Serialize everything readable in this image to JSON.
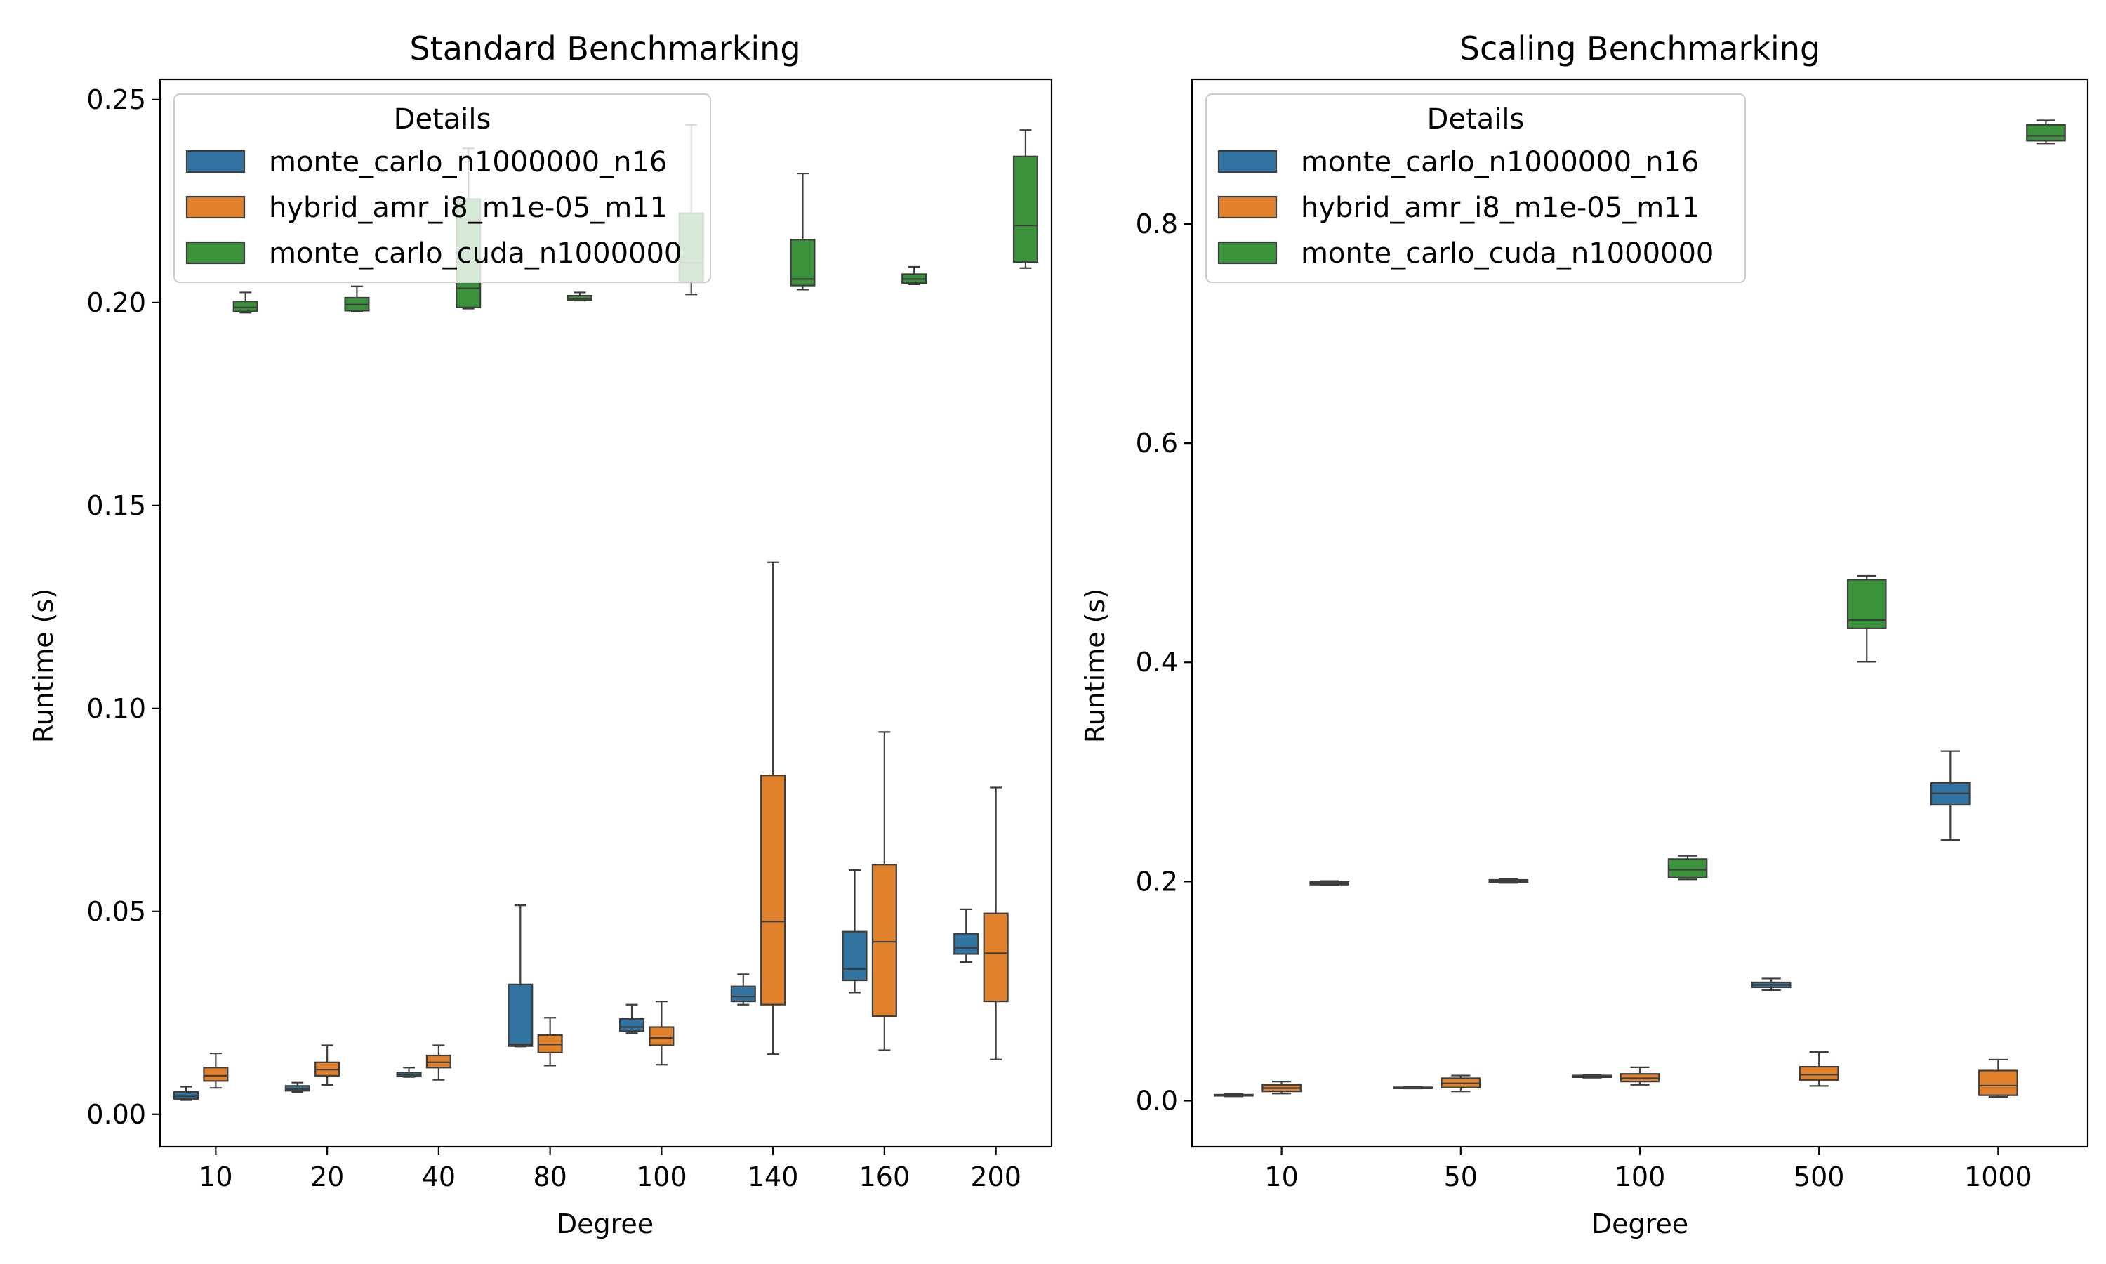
{
  "chart_data": [
    {
      "type": "box",
      "title": "Standard Benchmarking",
      "xlabel": "Degree",
      "ylabel": "Runtime (s)",
      "ylim": [
        -0.008,
        0.255
      ],
      "yticks": [
        "0.00",
        "0.05",
        "0.10",
        "0.15",
        "0.20",
        "0.25"
      ],
      "categories": [
        "10",
        "20",
        "40",
        "80",
        "100",
        "140",
        "160",
        "200"
      ],
      "legend": {
        "title": "Details",
        "position": "upper-left",
        "entries": [
          "monte_carlo_n1000000_n16",
          "hybrid_amr_i8_m1e-05_m11",
          "monte_carlo_cuda_n1000000"
        ]
      },
      "series": [
        {
          "name": "monte_carlo_n1000000_n16",
          "color": "#3274a1",
          "boxes": [
            {
              "whislo": 0.0035,
              "q1": 0.0038,
              "med": 0.0044,
              "q3": 0.0055,
              "whishi": 0.0068
            },
            {
              "whislo": 0.0055,
              "q1": 0.0058,
              "med": 0.0062,
              "q3": 0.007,
              "whishi": 0.0078
            },
            {
              "whislo": 0.0092,
              "q1": 0.0093,
              "med": 0.0097,
              "q3": 0.0103,
              "whishi": 0.0115
            },
            {
              "whislo": 0.0167,
              "q1": 0.0168,
              "med": 0.0172,
              "q3": 0.032,
              "whishi": 0.0515
            },
            {
              "whislo": 0.02,
              "q1": 0.0205,
              "med": 0.0215,
              "q3": 0.0235,
              "whishi": 0.027
            },
            {
              "whislo": 0.027,
              "q1": 0.0278,
              "med": 0.029,
              "q3": 0.0315,
              "whishi": 0.0345
            },
            {
              "whislo": 0.03,
              "q1": 0.033,
              "med": 0.0358,
              "q3": 0.045,
              "whishi": 0.0602
            },
            {
              "whislo": 0.0375,
              "q1": 0.0395,
              "med": 0.041,
              "q3": 0.0445,
              "whishi": 0.0505
            }
          ]
        },
        {
          "name": "hybrid_amr_i8_m1e-05_m11",
          "color": "#e1812c",
          "boxes": [
            {
              "whislo": 0.0065,
              "q1": 0.0082,
              "med": 0.0095,
              "q3": 0.0115,
              "whishi": 0.015
            },
            {
              "whislo": 0.0072,
              "q1": 0.0095,
              "med": 0.011,
              "q3": 0.0128,
              "whishi": 0.017
            },
            {
              "whislo": 0.0085,
              "q1": 0.0115,
              "med": 0.0128,
              "q3": 0.0145,
              "whishi": 0.017
            },
            {
              "whislo": 0.012,
              "q1": 0.0152,
              "med": 0.0172,
              "q3": 0.0195,
              "whishi": 0.0238
            },
            {
              "whislo": 0.0122,
              "q1": 0.017,
              "med": 0.0188,
              "q3": 0.0215,
              "whishi": 0.0278
            },
            {
              "whislo": 0.0148,
              "q1": 0.027,
              "med": 0.0475,
              "q3": 0.0835,
              "whishi": 0.136
            },
            {
              "whislo": 0.0158,
              "q1": 0.0242,
              "med": 0.0425,
              "q3": 0.0615,
              "whishi": 0.0942
            },
            {
              "whislo": 0.0135,
              "q1": 0.0278,
              "med": 0.0397,
              "q3": 0.0495,
              "whishi": 0.0805
            }
          ]
        },
        {
          "name": "monte_carlo_cuda_n1000000",
          "color": "#3a923a",
          "boxes": [
            {
              "whislo": 0.1975,
              "q1": 0.1978,
              "med": 0.1988,
              "q3": 0.2003,
              "whishi": 0.2025
            },
            {
              "whislo": 0.1978,
              "q1": 0.198,
              "med": 0.1995,
              "q3": 0.2012,
              "whishi": 0.204
            },
            {
              "whislo": 0.1985,
              "q1": 0.1988,
              "med": 0.2035,
              "q3": 0.2255,
              "whishi": 0.238
            },
            {
              "whislo": 0.2005,
              "q1": 0.2006,
              "med": 0.201,
              "q3": 0.2017,
              "whishi": 0.2025
            },
            {
              "whislo": 0.202,
              "q1": 0.205,
              "med": 0.2098,
              "q3": 0.222,
              "whishi": 0.2438
            },
            {
              "whislo": 0.2032,
              "q1": 0.2042,
              "med": 0.2058,
              "q3": 0.2155,
              "whishi": 0.2318
            },
            {
              "whislo": 0.2045,
              "q1": 0.2048,
              "med": 0.2058,
              "q3": 0.207,
              "whishi": 0.2088
            },
            {
              "whislo": 0.2085,
              "q1": 0.21,
              "med": 0.219,
              "q3": 0.236,
              "whishi": 0.2425
            }
          ]
        }
      ]
    },
    {
      "type": "box",
      "title": "Scaling Benchmarking",
      "xlabel": "Degree",
      "ylabel": "Runtime (s)",
      "ylim": [
        -0.042,
        0.932
      ],
      "yticks": [
        "0.0",
        "0.2",
        "0.4",
        "0.6",
        "0.8"
      ],
      "categories": [
        "10",
        "50",
        "100",
        "500",
        "1000"
      ],
      "legend": {
        "title": "Details",
        "position": "upper-left",
        "entries": [
          "monte_carlo_n1000000_n16",
          "hybrid_amr_i8_m1e-05_m11",
          "monte_carlo_cuda_n1000000"
        ]
      },
      "series": [
        {
          "name": "monte_carlo_n1000000_n16",
          "color": "#3274a1",
          "boxes": [
            {
              "whislo": 0.004,
              "q1": 0.0045,
              "med": 0.005,
              "q3": 0.0055,
              "whishi": 0.006
            },
            {
              "whislo": 0.0112,
              "q1": 0.0115,
              "med": 0.0118,
              "q3": 0.0122,
              "whishi": 0.0125
            },
            {
              "whislo": 0.021,
              "q1": 0.0215,
              "med": 0.0222,
              "q3": 0.023,
              "whishi": 0.0235
            },
            {
              "whislo": 0.101,
              "q1": 0.1035,
              "med": 0.1058,
              "q3": 0.108,
              "whishi": 0.1115
            },
            {
              "whislo": 0.238,
              "q1": 0.27,
              "med": 0.2805,
              "q3": 0.29,
              "whishi": 0.319
            }
          ]
        },
        {
          "name": "hybrid_amr_i8_m1e-05_m11",
          "color": "#e1812c",
          "boxes": [
            {
              "whislo": 0.0065,
              "q1": 0.0085,
              "med": 0.0115,
              "q3": 0.0145,
              "whishi": 0.0175
            },
            {
              "whislo": 0.0085,
              "q1": 0.012,
              "med": 0.0158,
              "q3": 0.0205,
              "whishi": 0.023
            },
            {
              "whislo": 0.0145,
              "q1": 0.0175,
              "med": 0.0205,
              "q3": 0.0245,
              "whishi": 0.0305
            },
            {
              "whislo": 0.0135,
              "q1": 0.019,
              "med": 0.0238,
              "q3": 0.031,
              "whishi": 0.0445
            },
            {
              "whislo": 0.0035,
              "q1": 0.005,
              "med": 0.0138,
              "q3": 0.0275,
              "whishi": 0.0375
            }
          ]
        },
        {
          "name": "monte_carlo_cuda_n1000000",
          "color": "#3a923a",
          "boxes": [
            {
              "whislo": 0.1965,
              "q1": 0.1972,
              "med": 0.1982,
              "q3": 0.1995,
              "whishi": 0.2005
            },
            {
              "whislo": 0.1988,
              "q1": 0.1995,
              "med": 0.2005,
              "q3": 0.2015,
              "whishi": 0.2025
            },
            {
              "whislo": 0.202,
              "q1": 0.2035,
              "med": 0.2108,
              "q3": 0.2205,
              "whishi": 0.2235
            },
            {
              "whislo": 0.4005,
              "q1": 0.431,
              "med": 0.4385,
              "q3": 0.4755,
              "whishi": 0.479
            },
            {
              "whislo": 0.8735,
              "q1": 0.876,
              "med": 0.8805,
              "q3": 0.8905,
              "whishi": 0.8945
            }
          ]
        }
      ]
    }
  ]
}
